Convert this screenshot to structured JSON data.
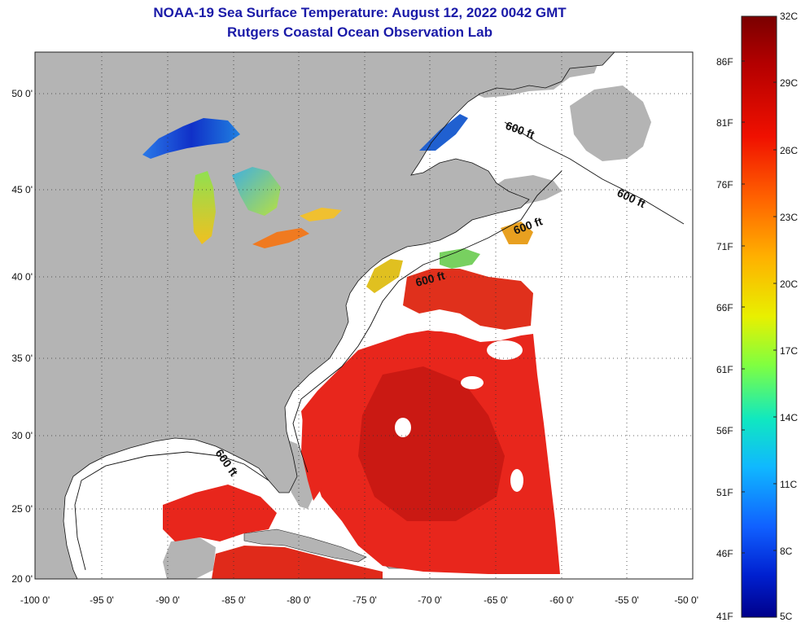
{
  "header": {
    "title": "NOAA-19 Sea Surface Temperature:  August 12, 2022 0042 GMT",
    "subtitle": "Rutgers Coastal Ocean Observation Lab"
  },
  "map": {
    "lon_range": [
      -100,
      -50
    ],
    "lat_range": [
      20,
      52
    ],
    "lon_ticks": [
      "-100 0'",
      "-95 0'",
      "-90 0'",
      "-85 0'",
      "-80 0'",
      "-75 0'",
      "-70 0'",
      "-65 0'",
      "-60 0'",
      "-55 0'",
      "-50 0'"
    ],
    "lat_ticks": [
      "50 0'",
      "45 0'",
      "40 0'",
      "35 0'",
      "30 0'",
      "25 0'",
      "20 0'"
    ],
    "grid": "dotted",
    "contour_label": "600 ft",
    "colors": {
      "land": "#b4b4b4",
      "cloud_mask": "#ffffff",
      "warm_water": "#e8261c",
      "deep_red": "#c81812",
      "lake_cold": "#1e52d8",
      "lake_warm": "#e0c830"
    }
  },
  "colorbar": {
    "celsius_labels": [
      "32C",
      "29C",
      "26C",
      "23C",
      "20C",
      "17C",
      "14C",
      "11C",
      "8C",
      "5C"
    ],
    "fahrenheit_labels": [
      "86F",
      "81F",
      "76F",
      "71F",
      "66F",
      "61F",
      "56F",
      "51F",
      "46F",
      "41F"
    ],
    "range_c": [
      5,
      32
    ],
    "scale_colors": [
      "#7a0000",
      "#c80000",
      "#ff2a00",
      "#ff7a00",
      "#ffd000",
      "#e8ff10",
      "#70ff70",
      "#10e0e0",
      "#10a0ff",
      "#1040ff",
      "#0010c0",
      "#00007a"
    ]
  }
}
